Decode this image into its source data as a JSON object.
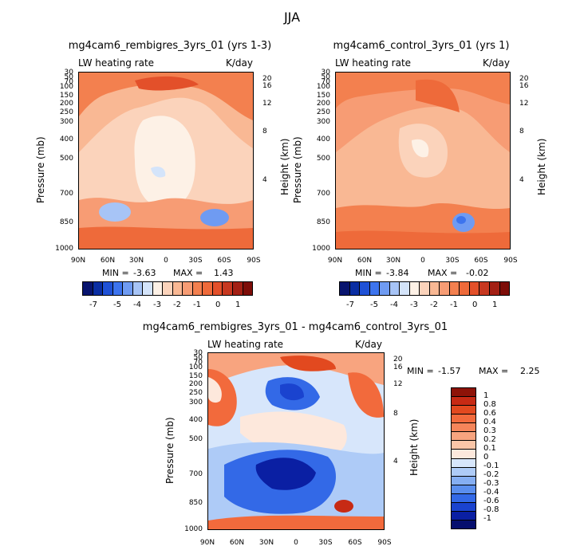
{
  "page_title": "JJA",
  "chart_data": [
    {
      "type": "contour",
      "title": "mg4cam6_rembigres_3yrs_01 (yrs 1-3)",
      "variable_label": "LW heating rate",
      "units_label": "K/day",
      "ylabel": "Pressure (mb)",
      "y2label": "Height (km)",
      "x_ticks": [
        "90N",
        "60N",
        "30N",
        "0",
        "30S",
        "60S",
        "90S"
      ],
      "y_ticks": [
        "30",
        "50",
        "70",
        "100",
        "150",
        "200",
        "250",
        "300",
        "400",
        "500",
        "700",
        "850",
        "1000"
      ],
      "y2_ticks": [
        "20",
        "16",
        "12",
        "8",
        "4"
      ],
      "ylim": [
        1000,
        30
      ],
      "min_label": "MIN =",
      "min_value": "-3.63",
      "max_label": "MAX =",
      "max_value": "1.43"
    },
    {
      "type": "contour",
      "title": "mg4cam6_control_3yrs_01 (yrs 1)",
      "variable_label": "LW heating rate",
      "units_label": "K/day",
      "ylabel": "Pressure (mb)",
      "y2label": "Height (km)",
      "x_ticks": [
        "90N",
        "60N",
        "30N",
        "0",
        "30S",
        "60S",
        "90S"
      ],
      "y_ticks": [
        "30",
        "50",
        "70",
        "100",
        "150",
        "200",
        "250",
        "300",
        "400",
        "500",
        "700",
        "850",
        "1000"
      ],
      "y2_ticks": [
        "20",
        "16",
        "12",
        "8",
        "4"
      ],
      "ylim": [
        1000,
        30
      ],
      "min_label": "MIN =",
      "min_value": "-3.84",
      "max_label": "MAX =",
      "max_value": "-0.02"
    },
    {
      "type": "contour",
      "title": "mg4cam6_rembigres_3yrs_01 - mg4cam6_control_3yrs_01",
      "variable_label": "LW heating rate",
      "units_label": "K/day",
      "ylabel": "Pressure (mb)",
      "y2label": "Height (km)",
      "x_ticks": [
        "90N",
        "60N",
        "30N",
        "0",
        "30S",
        "60S",
        "90S"
      ],
      "y_ticks": [
        "30",
        "50",
        "70",
        "100",
        "150",
        "200",
        "250",
        "300",
        "400",
        "500",
        "700",
        "850",
        "1000"
      ],
      "y2_ticks": [
        "20",
        "16",
        "12",
        "8",
        "4"
      ],
      "ylim": [
        1000,
        30
      ],
      "min_label": "MIN =",
      "min_value": "-1.57",
      "max_label": "MAX =",
      "max_value": "2.25"
    }
  ],
  "colorbar_top": {
    "tick_labels": [
      "-7",
      "-5",
      "-4",
      "-3",
      "-2",
      "-1",
      "0",
      "1"
    ],
    "colors": [
      "#08146e",
      "#0a2ea3",
      "#1f51d6",
      "#3d74ee",
      "#6f9bf2",
      "#a7c4f6",
      "#d4e4fa",
      "#fdf1e6",
      "#fbd3bb",
      "#f9b894",
      "#f79c74",
      "#f3804f",
      "#ee6a3a",
      "#e3502a",
      "#c73820",
      "#a32014",
      "#7d0d08"
    ]
  },
  "colorbar_diff": {
    "tick_labels": [
      "1",
      "0.8",
      "0.6",
      "0.4",
      "0.3",
      "0.2",
      "0.1",
      "0",
      "-0.1",
      "-0.2",
      "-0.3",
      "-0.4",
      "-0.6",
      "-0.8",
      "-1"
    ],
    "colors": [
      "#8e1308",
      "#c72a14",
      "#e2491f",
      "#f26a3c",
      "#f5855a",
      "#f8a47f",
      "#fbc6a8",
      "#fde8dc",
      "#d7e6fb",
      "#aecbf7",
      "#85aef2",
      "#5a8eee",
      "#3369e7",
      "#1a43cf",
      "#0a1fa3",
      "#060f6e"
    ]
  }
}
